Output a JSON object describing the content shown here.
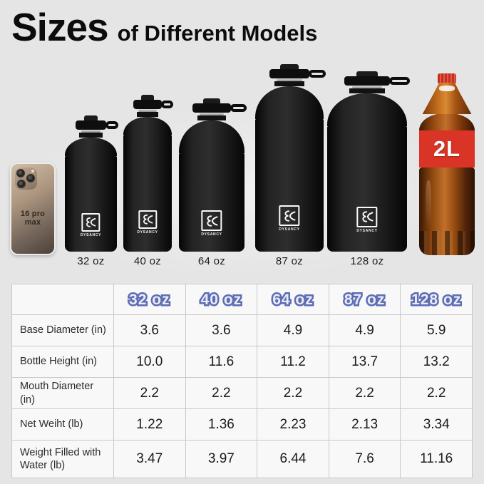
{
  "title": {
    "main": "Sizes",
    "rest": "of Different Models"
  },
  "brand": "DYSANCY",
  "lineup": {
    "phone": {
      "label": "16 pro max"
    },
    "bottles": [
      {
        "label": "32 oz"
      },
      {
        "label": "40 oz"
      },
      {
        "label": "64 oz"
      },
      {
        "label": "87 oz"
      },
      {
        "label": "128 oz"
      }
    ],
    "cola": {
      "label": "2L"
    }
  },
  "table": {
    "columns": [
      "32 oz",
      "40 oz",
      "64 oz",
      "87 oz",
      "128 oz"
    ],
    "rows": [
      {
        "label": "Base Diameter (in)",
        "values": [
          "3.6",
          "3.6",
          "4.9",
          "4.9",
          "5.9"
        ]
      },
      {
        "label": "Bottle Height (in)",
        "values": [
          "10.0",
          "11.6",
          "11.2",
          "13.7",
          "13.2"
        ]
      },
      {
        "label": "Mouth Diameter (in)",
        "values": [
          "2.2",
          "2.2",
          "2.2",
          "2.2",
          "2.2"
        ]
      },
      {
        "label": "Net Weiht (lb)",
        "values": [
          "1.22",
          "1.36",
          "2.23",
          "2.13",
          "3.34"
        ]
      },
      {
        "label": "Weight Filled with Water (lb)",
        "values": [
          "3.47",
          "3.97",
          "6.44",
          "7.6",
          "11.16"
        ]
      }
    ]
  },
  "colors": {
    "background": "#e5e5e6",
    "table_cell": "#f8f8f8",
    "table_border": "#c9c9c9",
    "header_outline": "#5e6cb2",
    "header_fill": "#e9ecf9",
    "cola_red": "#d93425",
    "bottle_black": "#121212",
    "phone_bronze": "#a08b77"
  }
}
